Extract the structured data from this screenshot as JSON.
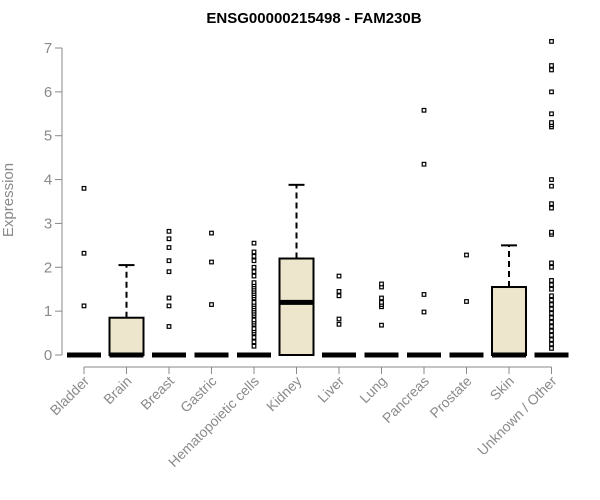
{
  "chart_data": {
    "type": "box",
    "title": "ENSG00000215498 - FAM230B",
    "ylabel": "Expression",
    "xlabel": "",
    "ylim": [
      0,
      7.2
    ],
    "yticks": [
      0,
      1,
      2,
      3,
      4,
      5,
      6,
      7
    ],
    "box_fill": "#ede6cc",
    "categories": [
      "Bladder",
      "Brain",
      "Breast",
      "Gastric",
      "Hematopoietic cells",
      "Kidney",
      "Liver",
      "Lung",
      "Pancreas",
      "Prostate",
      "Skin",
      "Unknown / Other"
    ],
    "boxes": [
      {
        "q1": 0,
        "median": 0,
        "q3": 0,
        "whisker_low": 0,
        "whisker_high": 0,
        "outliers": [
          1.12,
          2.32,
          3.8
        ]
      },
      {
        "q1": 0,
        "median": 0,
        "q3": 0.85,
        "whisker_low": 0,
        "whisker_high": 2.05,
        "outliers": []
      },
      {
        "q1": 0,
        "median": 0,
        "q3": 0,
        "whisker_low": 0,
        "whisker_high": 0,
        "outliers": [
          0.65,
          1.12,
          1.3,
          1.9,
          2.15,
          2.45,
          2.65,
          2.82
        ]
      },
      {
        "q1": 0,
        "median": 0,
        "q3": 0,
        "whisker_low": 0,
        "whisker_high": 0,
        "outliers": [
          1.15,
          2.12,
          2.78
        ]
      },
      {
        "q1": 0,
        "median": 0,
        "q3": 0,
        "whisker_low": 0,
        "whisker_high": 0,
        "outliers": [
          0.2,
          0.3,
          0.4,
          0.5,
          0.55,
          0.6,
          0.7,
          0.75,
          0.8,
          0.9,
          0.95,
          1.0,
          1.05,
          1.1,
          1.15,
          1.2,
          1.3,
          1.35,
          1.4,
          1.45,
          1.5,
          1.55,
          1.6,
          1.65,
          1.8,
          1.9,
          2.0,
          2.15,
          2.25,
          2.35,
          2.55
        ]
      },
      {
        "q1": 0,
        "median": 1.2,
        "q3": 2.2,
        "whisker_low": 0,
        "whisker_high": 3.88,
        "outliers": []
      },
      {
        "q1": 0,
        "median": 0,
        "q3": 0,
        "whisker_low": 0,
        "whisker_high": 0,
        "outliers": [
          0.7,
          0.82,
          1.35,
          1.45,
          1.8
        ]
      },
      {
        "q1": 0,
        "median": 0,
        "q3": 0,
        "whisker_low": 0,
        "whisker_high": 0,
        "outliers": [
          0.68,
          1.1,
          1.15,
          1.2,
          1.3,
          1.55,
          1.62
        ]
      },
      {
        "q1": 0,
        "median": 0,
        "q3": 0,
        "whisker_low": 0,
        "whisker_high": 0,
        "outliers": [
          0.98,
          1.38,
          4.35,
          5.58
        ]
      },
      {
        "q1": 0,
        "median": 0,
        "q3": 0,
        "whisker_low": 0,
        "whisker_high": 0,
        "outliers": [
          1.22,
          2.28
        ]
      },
      {
        "q1": 0,
        "median": 0,
        "q3": 1.55,
        "whisker_low": 0,
        "whisker_high": 2.5,
        "outliers": []
      },
      {
        "q1": 0,
        "median": 0,
        "q3": 0,
        "whisker_low": 0,
        "whisker_high": 0,
        "outliers": [
          0.15,
          0.25,
          0.35,
          0.45,
          0.55,
          0.65,
          0.75,
          0.85,
          0.95,
          1.05,
          1.15,
          1.25,
          1.35,
          1.5,
          1.6,
          1.7,
          2.0,
          2.1,
          2.75,
          2.8,
          3.35,
          3.45,
          3.85,
          4.0,
          5.2,
          5.25,
          5.3,
          5.5,
          6.0,
          6.5,
          6.6,
          7.15
        ]
      }
    ]
  }
}
